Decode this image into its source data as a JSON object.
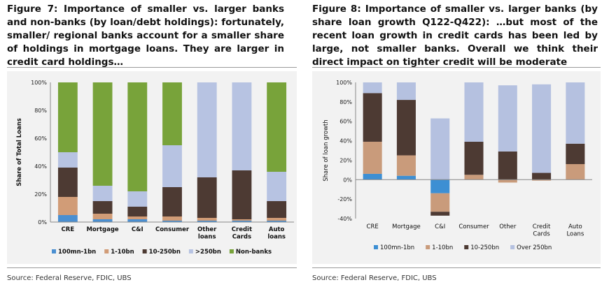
{
  "figure7": {
    "title": "Figure 7: Importance of smaller vs. larger banks and non-banks (by loan/debt holdings): fortunately, smaller/ regional banks account for a smaller share of holdings in mortgage loans. They are larger in credit card holdings…",
    "source": "Source: Federal Reserve, FDIC, UBS",
    "chart_data": {
      "type": "bar",
      "stacked": true,
      "ylabel": "Share of Total Loans",
      "ylim": [
        0,
        100
      ],
      "yticks": [
        "0%",
        "20%",
        "40%",
        "60%",
        "80%",
        "100%"
      ],
      "categories": [
        "CRE",
        "Mortgage",
        "C&I",
        "Consumer",
        "Other loans",
        "Credit Cards",
        "Auto loans"
      ],
      "series": [
        {
          "name": "100mn-1bn",
          "color": "#4a8fd1",
          "values": [
            5,
            2,
            2,
            1,
            1,
            1,
            1
          ]
        },
        {
          "name": "1-10bn",
          "color": "#d19c77",
          "values": [
            13,
            4,
            2,
            3,
            2,
            1,
            2
          ]
        },
        {
          "name": "10-250bn",
          "color": "#4d3a33",
          "values": [
            21,
            9,
            7,
            21,
            29,
            35,
            12
          ]
        },
        {
          "name": ">250bn",
          "color": "#b7c3e2",
          "values": [
            11,
            11,
            11,
            30,
            68,
            63,
            21
          ]
        },
        {
          "name": "Non-banks",
          "color": "#78a33a",
          "values": [
            50,
            74,
            78,
            45,
            0,
            0,
            64
          ]
        }
      ]
    }
  },
  "figure8": {
    "title": "Figure 8: Importance of smaller vs. larger banks (by share loan growth Q122-Q422): …but most of the recent loan growth in credit cards has been led by large, not smaller banks. Overall we think their direct impact on tighter credit will be moderate",
    "source": "Source: Federal Reserve, FDIC, UBS",
    "chart_data": {
      "type": "bar",
      "stacked": true,
      "ylabel": "Share of loan growth",
      "ylim": [
        -40,
        100
      ],
      "yticks": [
        "-40%",
        "-20%",
        "0%",
        "20%",
        "40%",
        "60%",
        "80%",
        "100%"
      ],
      "categories": [
        "CRE",
        "Mortgage",
        "C&I",
        "Consumer",
        "Other",
        "Credit Cards",
        "Auto Loans"
      ],
      "series": [
        {
          "name": "100mn-1bn",
          "color": "#3d8fd3",
          "values": [
            6,
            4,
            -14,
            0,
            0,
            0,
            0
          ]
        },
        {
          "name": "1-10bn",
          "color": "#c99b7b",
          "values": [
            33,
            21,
            -19,
            5,
            -3,
            -1,
            16
          ]
        },
        {
          "name": "10-250bn",
          "color": "#4d3a33",
          "values": [
            50,
            57,
            -4,
            34,
            29,
            7,
            21
          ]
        },
        {
          "name": "Over 250bn",
          "color": "#b5c1e0",
          "values": [
            11,
            18,
            63,
            61,
            68,
            91,
            63
          ]
        }
      ]
    }
  }
}
